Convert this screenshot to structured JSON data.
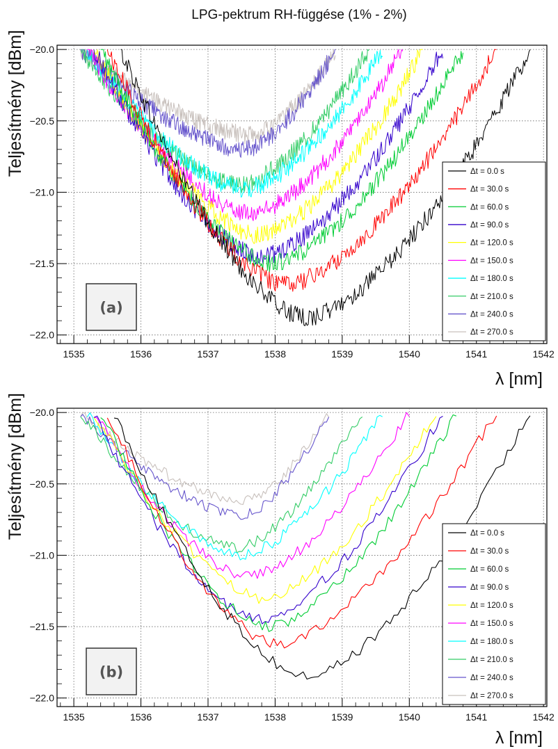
{
  "title": "LPG-pektrum RH-függése (1% - 2%)",
  "chart_data": [
    {
      "panel_label": "(a)",
      "type": "line",
      "xlabel": "λ [nm]",
      "ylabel": "Teljesítmény [dBm]",
      "xlim": [
        1534.75,
        1542.05
      ],
      "ylim": [
        -22.06,
        -19.97
      ],
      "xticks": [
        "1535",
        "1536",
        "1537",
        "1538",
        "1539",
        "1540",
        "1541",
        "1542"
      ],
      "yticks": [
        "-20.0",
        "-20.5",
        "-21.0",
        "-21.5",
        "-22.0"
      ],
      "grid": true,
      "legend_position": "bottom-right",
      "noise": 0.065,
      "series": [
        {
          "name": "Δt = 0.0 s",
          "color": "#000000",
          "x_start": 1535.7,
          "x_end": 1541.8,
          "center": 1538.45,
          "min": -21.88
        },
        {
          "name": "Δt = 30.0 s",
          "color": "#ff0000",
          "x_start": 1535.5,
          "x_end": 1541.3,
          "center": 1538.15,
          "min": -21.65
        },
        {
          "name": "Δt = 60.0 s",
          "color": "#00cc33",
          "x_start": 1535.4,
          "x_end": 1540.8,
          "center": 1537.95,
          "min": -21.5
        },
        {
          "name": "Δt = 90.0 s",
          "color": "#3300cc",
          "x_start": 1535.3,
          "x_end": 1540.5,
          "center": 1537.8,
          "min": -21.45
        },
        {
          "name": "Δt = 120.0 s",
          "color": "#ffff00",
          "x_start": 1535.3,
          "x_end": 1540.2,
          "center": 1537.75,
          "min": -21.3
        },
        {
          "name": "Δt = 150.0 s",
          "color": "#ff00ff",
          "x_start": 1535.2,
          "x_end": 1539.9,
          "center": 1537.65,
          "min": -21.15
        },
        {
          "name": "Δt = 180.0 s",
          "color": "#00ffff",
          "x_start": 1535.2,
          "x_end": 1539.6,
          "center": 1537.55,
          "min": -20.98
        },
        {
          "name": "Δt = 210.0 s",
          "color": "#33cc66",
          "x_start": 1535.1,
          "x_end": 1539.4,
          "center": 1537.45,
          "min": -20.95
        },
        {
          "name": "Δt = 240.0 s",
          "color": "#6655cc",
          "x_start": 1535.1,
          "x_end": 1538.9,
          "center": 1537.55,
          "min": -20.7
        },
        {
          "name": "Δt = 270.0 s",
          "color": "#c8c0bc",
          "x_start": 1535.1,
          "x_end": 1538.9,
          "center": 1537.65,
          "min": -20.6
        }
      ]
    },
    {
      "panel_label": "(b)",
      "type": "line",
      "xlabel": "λ [nm]",
      "ylabel": "Teljesítmény [dBm]",
      "xlim": [
        1534.75,
        1542.05
      ],
      "ylim": [
        -22.06,
        -19.97
      ],
      "xticks": [
        "1535",
        "1536",
        "1537",
        "1538",
        "1539",
        "1540",
        "1541",
        "1542"
      ],
      "yticks": [
        "-20.0",
        "-20.5",
        "-21.0",
        "-21.5",
        "-22.0"
      ],
      "grid": true,
      "legend_position": "bottom-right",
      "noise": 0.04,
      "series": [
        {
          "name": "Δt = 0.0 s",
          "color": "#000000",
          "x_start": 1535.6,
          "x_end": 1541.8,
          "center": 1538.45,
          "min": -21.85
        },
        {
          "name": "Δt = 30.0 s",
          "color": "#ff0000",
          "x_start": 1535.5,
          "x_end": 1541.3,
          "center": 1538.0,
          "min": -21.62
        },
        {
          "name": "Δt = 60.0 s",
          "color": "#00cc33",
          "x_start": 1535.4,
          "x_end": 1540.7,
          "center": 1537.9,
          "min": -21.5
        },
        {
          "name": "Δt = 90.0 s",
          "color": "#3300cc",
          "x_start": 1535.3,
          "x_end": 1540.5,
          "center": 1537.75,
          "min": -21.45
        },
        {
          "name": "Δt = 120.0 s",
          "color": "#ffff00",
          "x_start": 1535.3,
          "x_end": 1540.4,
          "center": 1537.8,
          "min": -21.3
        },
        {
          "name": "Δt = 150.0 s",
          "color": "#ff00ff",
          "x_start": 1535.3,
          "x_end": 1540.0,
          "center": 1537.6,
          "min": -21.15
        },
        {
          "name": "Δt = 180.0 s",
          "color": "#00ffff",
          "x_start": 1535.2,
          "x_end": 1539.6,
          "center": 1537.5,
          "min": -21.0
        },
        {
          "name": "Δt = 210.0 s",
          "color": "#33cc66",
          "x_start": 1535.1,
          "x_end": 1539.3,
          "center": 1537.4,
          "min": -20.95
        },
        {
          "name": "Δt = 240.0 s",
          "color": "#6655cc",
          "x_start": 1535.1,
          "x_end": 1538.8,
          "center": 1537.5,
          "min": -20.72
        },
        {
          "name": "Δt = 270.0 s",
          "color": "#c8c0bc",
          "x_start": 1535.1,
          "x_end": 1538.8,
          "center": 1537.55,
          "min": -20.62
        }
      ]
    }
  ]
}
